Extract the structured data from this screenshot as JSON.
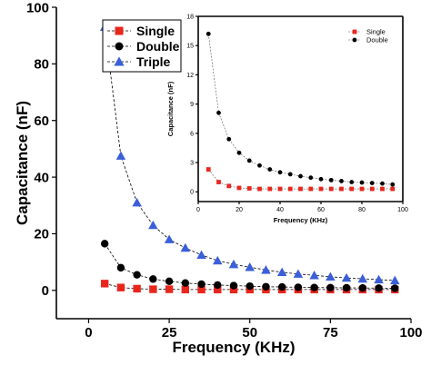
{
  "chart_data": [
    {
      "type": "line",
      "xlabel": "Frequency (KHz)",
      "ylabel": "Capacitance (nF)",
      "xlim": [
        -10,
        100
      ],
      "ylim": [
        -10,
        100
      ],
      "xticks": [
        0,
        25,
        50,
        75,
        100
      ],
      "yticks": [
        0,
        20,
        40,
        60,
        80,
        100
      ],
      "legend_position": "top-left",
      "x": [
        5,
        10,
        15,
        20,
        25,
        30,
        35,
        40,
        45,
        50,
        55,
        60,
        65,
        70,
        75,
        80,
        85,
        90,
        95
      ],
      "series": [
        {
          "name": "Single",
          "color": "#e8261c",
          "marker": "square",
          "values": [
            2.4,
            1.0,
            0.6,
            0.4,
            0.4,
            0.3,
            0.3,
            0.3,
            0.3,
            0.3,
            0.3,
            0.3,
            0.3,
            0.3,
            0.3,
            0.3,
            0.3,
            0.3,
            0.3
          ]
        },
        {
          "name": "Double",
          "color": "#000000",
          "marker": "circle",
          "values": [
            16.5,
            8.0,
            5.5,
            4.0,
            3.2,
            2.6,
            2.2,
            1.9,
            1.7,
            1.5,
            1.3,
            1.2,
            1.1,
            1.0,
            0.95,
            0.9,
            0.85,
            0.8,
            0.75
          ]
        },
        {
          "name": "Triple",
          "color": "#3a5fd9",
          "marker": "triangle",
          "values": [
            93,
            47.5,
            31,
            23,
            18,
            15,
            12.5,
            10.5,
            9.2,
            8.2,
            7.2,
            6.4,
            5.8,
            5.3,
            4.8,
            4.4,
            4.1,
            3.8,
            3.5
          ]
        }
      ]
    },
    {
      "type": "line",
      "xlabel": "Frequency (KHz)",
      "ylabel": "Capacitance (nF)",
      "xlim": [
        0,
        100
      ],
      "ylim": [
        -1,
        18
      ],
      "xticks": [
        0,
        20,
        40,
        60,
        80,
        100
      ],
      "yticks": [
        0,
        3,
        6,
        9,
        12,
        15,
        18
      ],
      "legend_position": "top-right",
      "x": [
        5,
        10,
        15,
        20,
        25,
        30,
        35,
        40,
        45,
        50,
        55,
        60,
        65,
        70,
        75,
        80,
        85,
        90,
        95
      ],
      "series": [
        {
          "name": "Single",
          "color": "#e8261c",
          "marker": "square",
          "values": [
            2.3,
            1.0,
            0.6,
            0.4,
            0.35,
            0.3,
            0.3,
            0.3,
            0.3,
            0.3,
            0.3,
            0.3,
            0.3,
            0.3,
            0.3,
            0.3,
            0.3,
            0.3,
            0.3
          ]
        },
        {
          "name": "Double",
          "color": "#000000",
          "marker": "circle",
          "values": [
            16.2,
            8.1,
            5.4,
            4.0,
            3.2,
            2.7,
            2.3,
            2.0,
            1.8,
            1.6,
            1.45,
            1.3,
            1.2,
            1.1,
            1.0,
            0.95,
            0.9,
            0.85,
            0.75
          ]
        }
      ]
    }
  ]
}
